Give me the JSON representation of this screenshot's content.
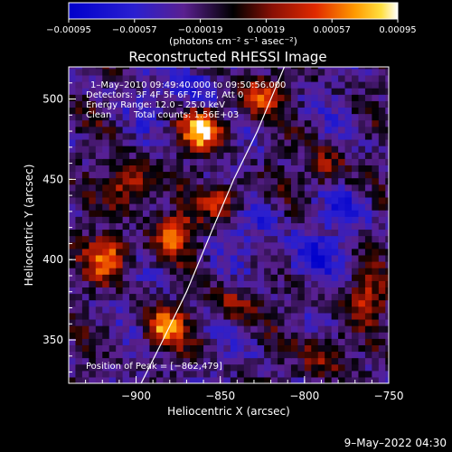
{
  "chart_data": {
    "type": "heatmap",
    "title": "Reconstructed RHESSI Image",
    "xlabel": "Heliocentric X (arcsec)",
    "ylabel": "Heliocentric Y (arcsec)",
    "xlim": [
      -940,
      -750
    ],
    "ylim": [
      323,
      520
    ],
    "x_ticks": [
      -900,
      -850,
      -800,
      -750
    ],
    "x_tick_labels": [
      "−900",
      "−850",
      "−800",
      "−750"
    ],
    "y_ticks": [
      350,
      400,
      450,
      500
    ],
    "y_tick_labels": [
      "350",
      "400",
      "450",
      "500"
    ],
    "colorbar": {
      "range": [
        -0.00095,
        0.00095
      ],
      "ticks": [
        -0.00095,
        -0.00057,
        -0.00019,
        0.00019,
        0.00057,
        0.00095
      ],
      "tick_labels": [
        "−0.00095",
        "−0.00057",
        "−0.00019",
        "0.00019",
        "0.00057",
        "0.00095"
      ],
      "unit_label": "(photons cm⁻² s⁻¹ asec⁻²)"
    },
    "annotations": {
      "time_range": "1–May–2010 09:49:40.000 to 09:50:56.000",
      "detectors": "Detectors: 3F 4F 5F 6F 7F 8F, Att 0",
      "energy_range": "Energy Range: 12.0 – 25.0 keV",
      "method": "Clean",
      "total_counts": "Total counts: 1.56E+03",
      "peak_position": "Position of Peak = [−862,479]"
    },
    "limb_curve": [
      [
        -897,
        323
      ],
      [
        -885,
        348
      ],
      [
        -870,
        380
      ],
      [
        -855,
        418
      ],
      [
        -842,
        450
      ],
      [
        -828,
        480
      ],
      [
        -812,
        520
      ]
    ],
    "bright_regions": [
      {
        "x": -862,
        "y": 479,
        "value": 0.00095
      },
      {
        "x": -918,
        "y": 400,
        "value": 0.0008
      },
      {
        "x": -905,
        "y": 445,
        "value": 0.0007
      },
      {
        "x": -880,
        "y": 415,
        "value": 0.0007
      },
      {
        "x": -885,
        "y": 355,
        "value": 0.00075
      },
      {
        "x": -850,
        "y": 435,
        "value": 0.0006
      },
      {
        "x": -830,
        "y": 500,
        "value": 0.00065
      },
      {
        "x": -790,
        "y": 455,
        "value": 0.0005
      },
      {
        "x": -790,
        "y": 340,
        "value": 0.00055
      },
      {
        "x": -765,
        "y": 375,
        "value": 0.0005
      },
      {
        "x": -845,
        "y": 370,
        "value": 0.00045
      }
    ],
    "dim_regions": [
      {
        "x": -870,
        "y": 505,
        "value": -0.00045
      },
      {
        "x": -830,
        "y": 420,
        "value": -0.0003
      },
      {
        "x": -800,
        "y": 400,
        "value": -0.0004
      },
      {
        "x": -775,
        "y": 430,
        "value": -0.00035
      }
    ]
  },
  "footer": {
    "date_stamp": "9–May–2022 04:30"
  }
}
